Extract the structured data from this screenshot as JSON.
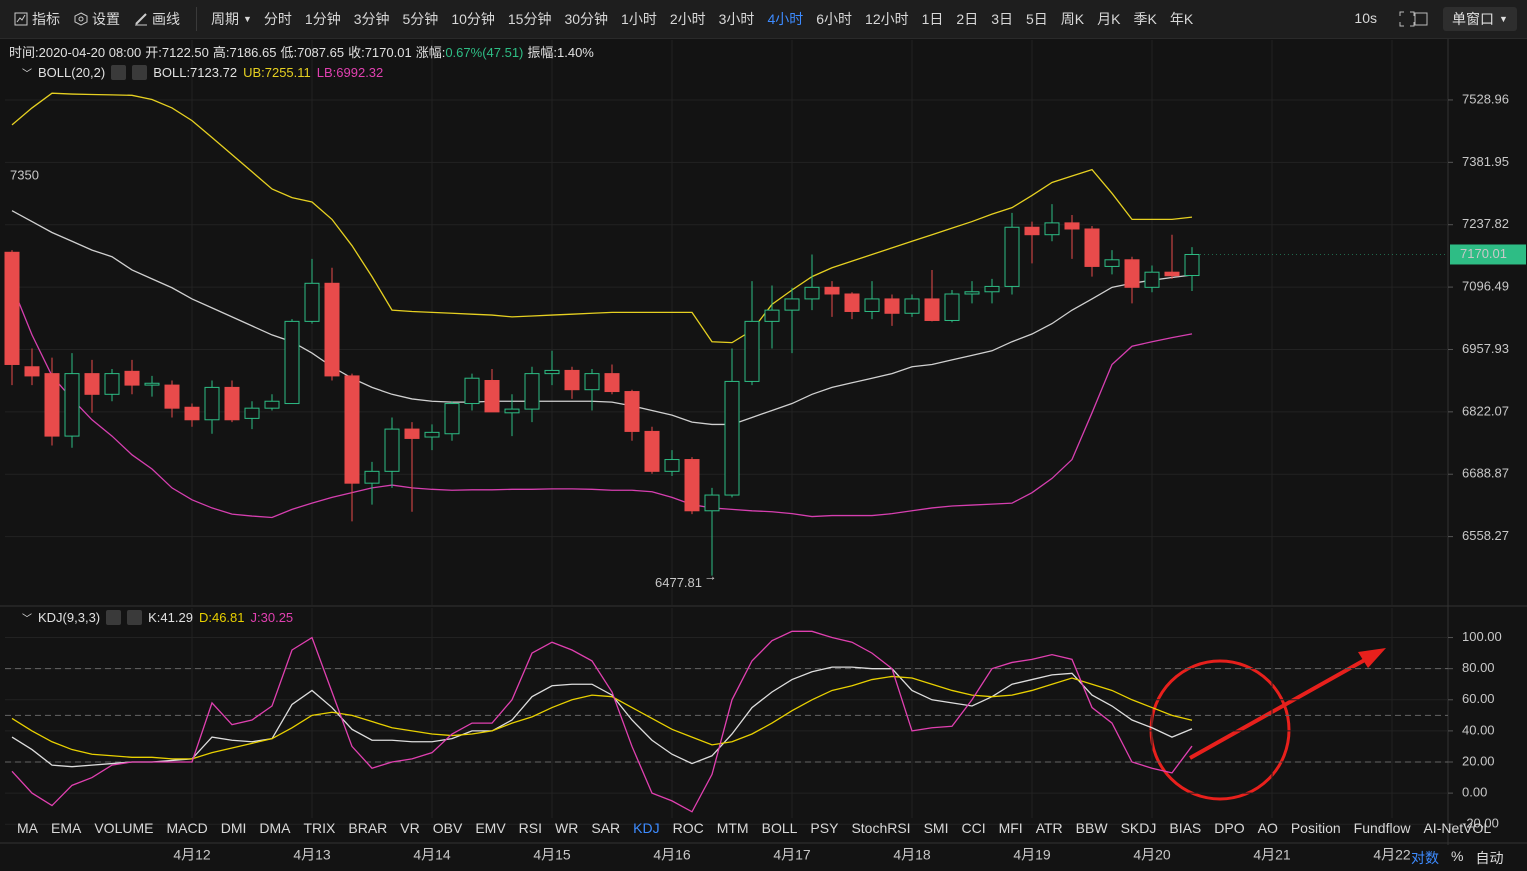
{
  "toolbar": {
    "tools": [
      "指标",
      "设置",
      "画线"
    ],
    "period_label": "周期",
    "periods": [
      "分时",
      "1分钟",
      "3分钟",
      "5分钟",
      "10分钟",
      "15分钟",
      "30分钟",
      "1小时",
      "2小时",
      "3小时",
      "4小时",
      "6小时",
      "12小时",
      "1日",
      "2日",
      "3日",
      "5日",
      "周K",
      "月K",
      "季K",
      "年K"
    ],
    "active": 10,
    "refresh": "10s",
    "window": "单窗口"
  },
  "info": {
    "items": [
      "时间:2020-04-20 08:00",
      "开:7122.50",
      "高:7186.65",
      "低:7087.65",
      "收:7170.01"
    ],
    "change_label": "涨幅:",
    "change": "0.67%(47.51)",
    "amplitude": "振幅:1.40%"
  },
  "boll_legend": {
    "name": "BOLL(20,2)",
    "mid": "BOLL:7123.72",
    "upper": "UB:7255.11",
    "lower": "LB:6992.32"
  },
  "kdj_legend": {
    "name": "KDJ(9,3,3)",
    "k": "K:41.29",
    "d": "D:46.81",
    "j": "J:30.25"
  },
  "indicators": {
    "tabs": [
      "MA",
      "EMA",
      "VOLUME",
      "MACD",
      "DMI",
      "DMA",
      "TRIX",
      "BRAR",
      "VR",
      "OBV",
      "EMV",
      "RSI",
      "WR",
      "SAR",
      "KDJ",
      "ROC",
      "MTM",
      "BOLL",
      "PSY",
      "StochRSI",
      "SMI",
      "CCI",
      "MFI",
      "ATR",
      "BBW",
      "SKDJ",
      "BIAS",
      "DPO",
      "AO",
      "Position",
      "Fundflow",
      "AI-NetVOL"
    ],
    "active": 14
  },
  "scale_options": [
    "对数",
    "%",
    "自动"
  ],
  "chart_data": [
    {
      "type": "candlestick",
      "log_scale": true,
      "grid": true,
      "up_color": "#2ebd85",
      "down_color": "#e84b4b",
      "xlim": [
        -0.35,
        71.8
      ],
      "ylim": [
        6418,
        7673
      ],
      "yticks": [
        7528.96,
        7381.95,
        7237.82,
        7096.49,
        6957.93,
        6822.07,
        6688.87,
        6558.27
      ],
      "xticks": [
        {
          "value": 9,
          "label": "4月12"
        },
        {
          "value": 15,
          "label": "4月13"
        },
        {
          "value": 21,
          "label": "4月14"
        },
        {
          "value": 27,
          "label": "4月15"
        },
        {
          "value": 33,
          "label": "4月16"
        },
        {
          "value": 39,
          "label": "4月17"
        },
        {
          "value": 45,
          "label": "4月18"
        },
        {
          "value": 51,
          "label": "4月19"
        },
        {
          "value": 57,
          "label": "4月20"
        },
        {
          "value": 63,
          "label": "4月21"
        },
        {
          "value": 69,
          "label": "4月22"
        }
      ],
      "open": [
        7175,
        6920,
        6905,
        6770,
        6905,
        6860,
        6910,
        6880,
        6880,
        6832,
        6805,
        6875,
        6808,
        6830,
        6840,
        7020,
        7105,
        6900,
        6670,
        6695,
        6785,
        6768,
        6775,
        6840,
        6890,
        6820,
        6828,
        6905,
        6912,
        6870,
        6905,
        6866,
        6780,
        6695,
        6720,
        6612,
        6645,
        6888,
        7020,
        7045,
        7070,
        7096,
        7081,
        7042,
        7070,
        7038,
        7070,
        7022,
        7081,
        7086,
        7098,
        7232,
        7215,
        7242,
        7228,
        7143,
        7158,
        7096,
        7130,
        7122.5
      ],
      "high": [
        7180,
        6960,
        6940,
        6950,
        6935,
        6915,
        6935,
        6900,
        6890,
        6840,
        6890,
        6890,
        6845,
        6860,
        7025,
        7160,
        7140,
        6905,
        6715,
        6810,
        6800,
        6795,
        6845,
        6905,
        6915,
        6860,
        6920,
        6955,
        6920,
        6915,
        6925,
        6870,
        6790,
        6740,
        6725,
        6660,
        6960,
        7110,
        7100,
        7095,
        7170,
        7110,
        7085,
        7110,
        7080,
        7080,
        7135,
        7090,
        7110,
        7115,
        7265,
        7245,
        7285,
        7260,
        7235,
        7180,
        7165,
        7145,
        7215,
        7186.65
      ],
      "low": [
        6880,
        6880,
        6750,
        6745,
        6820,
        6845,
        6860,
        6855,
        6810,
        6790,
        6775,
        6800,
        6785,
        6825,
        6840,
        7015,
        6890,
        6590,
        6625,
        6660,
        6610,
        6740,
        6760,
        6825,
        6822,
        6770,
        6800,
        6880,
        6850,
        6825,
        6860,
        6760,
        6690,
        6685,
        6605,
        6477.81,
        6640,
        6880,
        6960,
        6950,
        7045,
        7030,
        7025,
        7025,
        7010,
        7030,
        7020,
        7018,
        7060,
        7060,
        7080,
        7150,
        7200,
        7160,
        7120,
        7125,
        7060,
        7085,
        7115,
        7087.65
      ],
      "close": [
        6925,
        6900,
        6770,
        6905,
        6860,
        6905,
        6880,
        6884,
        6830,
        6805,
        6875,
        6805,
        6830,
        6845,
        7020,
        7105,
        6900,
        6670,
        6695,
        6785,
        6765,
        6778,
        6840,
        6895,
        6822,
        6828,
        6905,
        6912,
        6870,
        6905,
        6866,
        6780,
        6695,
        6720,
        6612,
        6645,
        6888,
        7020,
        7045,
        7070,
        7096,
        7081,
        7042,
        7070,
        7038,
        7070,
        7022,
        7081,
        7086,
        7098,
        7232,
        7215,
        7242,
        7228,
        7143,
        7158,
        7096,
        7130,
        7122,
        7170.01
      ],
      "series": [
        {
          "color": "#e6d021",
          "values": [
            7470,
            7510,
            7545,
            7543,
            7542,
            7541,
            7540,
            7530,
            7510,
            7480,
            7440,
            7400,
            7360,
            7320,
            7300,
            7290,
            7250,
            7190,
            7120,
            7045,
            7042,
            7040,
            7038,
            7036,
            7034,
            7030,
            7032,
            7034,
            7036,
            7038,
            7040,
            7040,
            7040,
            7040,
            7040,
            6975,
            6973,
            7000,
            7058,
            7090,
            7120,
            7140,
            7155,
            7170,
            7185,
            7200,
            7215,
            7230,
            7245,
            7262,
            7277,
            7305,
            7335,
            7350,
            7365,
            7310,
            7250,
            7250,
            7250,
            7255.11
          ]
        },
        {
          "color": "#d0d0d0",
          "values": [
            7270,
            7245,
            7220,
            7200,
            7180,
            7165,
            7135,
            7115,
            7095,
            7070,
            7050,
            7030,
            7010,
            6990,
            6975,
            6950,
            6920,
            6895,
            6875,
            6860,
            6850,
            6845,
            6843,
            6843,
            6845,
            6845,
            6845,
            6845,
            6845,
            6845,
            6843,
            6835,
            6825,
            6815,
            6800,
            6795,
            6795,
            6810,
            6825,
            6840,
            6860,
            6875,
            6885,
            6895,
            6905,
            6920,
            6925,
            6935,
            6945,
            6955,
            6975,
            6992,
            7015,
            7045,
            7070,
            7096,
            7105,
            7112,
            7118,
            7123.72
          ]
        },
        {
          "color": "#d63fb0",
          "values": [
            7100,
            6990,
            6900,
            6850,
            6805,
            6770,
            6730,
            6700,
            6660,
            6635,
            6618,
            6605,
            6601,
            6598,
            6615,
            6628,
            6640,
            6650,
            6660,
            6666,
            6660,
            6657,
            6655,
            6656,
            6656,
            6657,
            6657,
            6658,
            6658,
            6657,
            6655,
            6655,
            6652,
            6640,
            6625,
            6618,
            6615,
            6612,
            6610,
            6606,
            6600,
            6602,
            6602,
            6602,
            6606,
            6612,
            6618,
            6622,
            6624,
            6626,
            6628,
            6650,
            6680,
            6720,
            6820,
            6925,
            6965,
            6975,
            6984,
            6992.32
          ]
        }
      ],
      "annotations": [
        {
          "value": 7350
        }
      ]
    },
    {
      "type": "line",
      "grid": true,
      "xlim": [
        -0.35,
        71.8
      ],
      "ylim": [
        -16,
        119
      ],
      "yticks": [
        {
          "value": 100,
          "label": "100.00"
        },
        {
          "value": 80,
          "label": "80.00"
        },
        {
          "value": 60,
          "label": "60.00"
        },
        {
          "value": 40,
          "label": "40.00"
        },
        {
          "value": 20,
          "label": "20.00"
        },
        {
          "value": 0,
          "label": "0.00"
        },
        {
          "value": -20,
          "label": "-20.00"
        }
      ],
      "reference_lines": [
        80,
        50,
        20
      ],
      "series": [
        {
          "color": "#dddddd",
          "values": [
            36,
            28,
            18,
            17,
            18,
            19,
            20,
            20,
            21,
            22,
            36,
            34,
            33,
            35,
            57,
            66,
            55,
            41,
            34,
            34,
            33,
            33,
            35,
            40,
            40,
            47,
            62,
            69,
            70,
            70,
            63,
            47,
            34,
            25,
            19,
            24,
            38,
            55,
            65,
            73,
            78,
            81,
            81,
            80,
            80,
            66,
            60,
            58,
            56,
            62,
            70,
            73,
            76,
            77,
            63,
            56,
            47,
            42,
            36,
            41.29
          ]
        },
        {
          "color": "#e8d000",
          "values": [
            48,
            40,
            33,
            28,
            25,
            24,
            23,
            23,
            22,
            22,
            26,
            29,
            32,
            35,
            42,
            50,
            52,
            50,
            46,
            42,
            40,
            38,
            37,
            38,
            40,
            45,
            49,
            55,
            60,
            63,
            62,
            55,
            48,
            41,
            36,
            31,
            33,
            38,
            45,
            53,
            60,
            66,
            69,
            73,
            75,
            74,
            70,
            66,
            63,
            62,
            63,
            66,
            70,
            74,
            70,
            66,
            60,
            55,
            50,
            46.81
          ]
        },
        {
          "color": "#e040b0",
          "values": [
            14,
            0,
            -8,
            5,
            10,
            18,
            20,
            20,
            20,
            20,
            58,
            44,
            47,
            56,
            92,
            100,
            65,
            30,
            16,
            20,
            22,
            26,
            38,
            45,
            45,
            60,
            90,
            97,
            92,
            85,
            65,
            30,
            0,
            -5,
            -12,
            12,
            60,
            85,
            98,
            104,
            104,
            100,
            97,
            90,
            80,
            40,
            42,
            43,
            60,
            80,
            84,
            86,
            89,
            86,
            55,
            45,
            20,
            16,
            13,
            30.25
          ]
        }
      ]
    }
  ]
}
